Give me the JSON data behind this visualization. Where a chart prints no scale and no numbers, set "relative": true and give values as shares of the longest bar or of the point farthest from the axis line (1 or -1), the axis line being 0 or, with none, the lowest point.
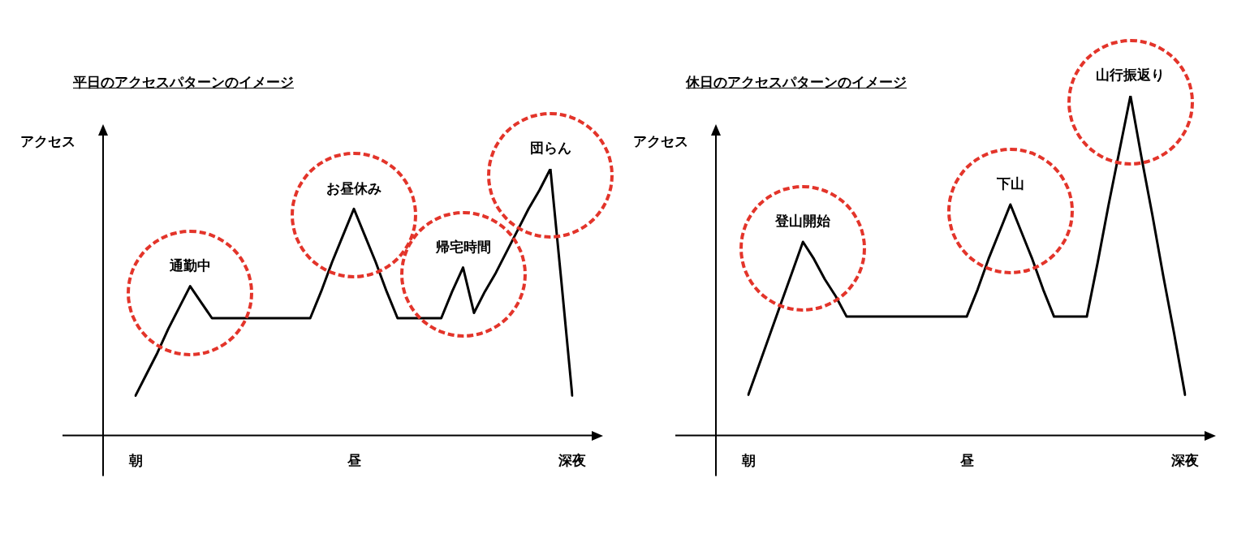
{
  "chart_data": [
    {
      "type": "line",
      "title": "平日のアクセスパターンのイメージ",
      "ylabel": "アクセス",
      "relative": true,
      "color": "#000000",
      "categories": [
        "朝",
        null,
        null,
        null,
        null,
        null,
        null,
        null,
        null,
        null,
        null,
        null,
        null,
        null,
        null,
        null,
        null,
        null,
        null,
        null,
        "昼",
        null,
        null,
        null,
        null,
        null,
        null,
        null,
        null,
        null,
        null,
        null,
        null,
        null,
        null,
        null,
        null,
        null,
        null,
        null,
        "深夜"
      ],
      "values": [
        0.15,
        0.23,
        0.31,
        0.4,
        0.48,
        0.56,
        0.5,
        0.44,
        0.44,
        0.44,
        0.44,
        0.44,
        0.44,
        0.44,
        0.44,
        0.44,
        0.44,
        0.54,
        0.65,
        0.75,
        0.85,
        0.75,
        0.65,
        0.54,
        0.44,
        0.44,
        0.44,
        0.44,
        0.44,
        0.54,
        0.63,
        0.46,
        0.54,
        0.61,
        0.69,
        0.77,
        0.85,
        0.92,
        1,
        0.58,
        0.15
      ],
      "annotations": [
        {
          "text": "通勤中",
          "y": 0.56
        },
        {
          "text": "お昼休み",
          "y": 0.85
        },
        {
          "text": "帰宅時間",
          "y": 0.63
        },
        {
          "text": "団らん",
          "y": 1
        }
      ]
    },
    {
      "type": "line",
      "title": "休日のアクセスパターンのイメージ",
      "ylabel": "アクセス",
      "relative": true,
      "color": "#000000",
      "categories": [
        "朝",
        null,
        null,
        null,
        null,
        null,
        null,
        null,
        null,
        null,
        null,
        null,
        null,
        null,
        null,
        null,
        null,
        null,
        null,
        null,
        "昼",
        null,
        null,
        null,
        null,
        null,
        null,
        null,
        null,
        null,
        null,
        null,
        null,
        null,
        null,
        null,
        null,
        null,
        null,
        null,
        "深夜"
      ],
      "values": [
        0.12,
        0.21,
        0.3,
        0.39,
        0.48,
        0.57,
        0.52,
        0.46,
        0.41,
        0.35,
        0.35,
        0.35,
        0.35,
        0.35,
        0.35,
        0.35,
        0.35,
        0.35,
        0.35,
        0.35,
        0.35,
        0.43,
        0.52,
        0.6,
        0.68,
        0.6,
        0.52,
        0.43,
        0.35,
        0.35,
        0.35,
        0.35,
        0.51,
        0.68,
        0.84,
        1,
        0.82,
        0.65,
        0.47,
        0.3,
        0.12
      ],
      "annotations": [
        {
          "text": "登山開始",
          "y": 0.57
        },
        {
          "text": "下山",
          "y": 0.68
        },
        {
          "text": "山行振返り",
          "y": 1
        }
      ]
    }
  ]
}
